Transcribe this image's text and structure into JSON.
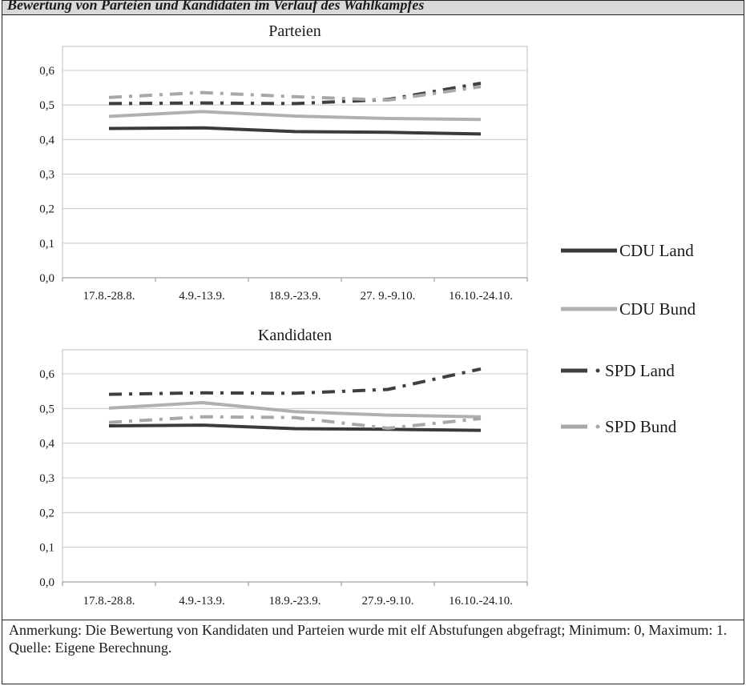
{
  "caption": "Bewertung von Parteien und Kandidaten im Verlauf des Wahlkampfes",
  "note": "Anmerkung: Die Bewertung von Kandidaten und Parteien wurde mit elf Abstufungen abgefragt; Minimum: 0, Maximum: 1.",
  "source": "Quelle: Eigene Berechnung.",
  "colors": {
    "CDU Land": "#3a3a3a",
    "CDU Bund": "#b0b0b0",
    "SPD Land": "#3f3f3f",
    "SPD Bund": "#a8a8a8"
  },
  "legend": [
    "CDU Land",
    "CDU Bund",
    "SPD Land",
    "SPD Bund"
  ],
  "chart_data": [
    {
      "type": "line",
      "title": "Parteien",
      "categories": [
        "17.8.-28.8.",
        "4.9.-13.9.",
        "18.9.-23.9.",
        "27. 9.-9.10.",
        "16.10.-24.10."
      ],
      "ylim": [
        0,
        0.6
      ],
      "yticks": [
        "0,0",
        "0,1",
        "0,2",
        "0,3",
        "0,4",
        "0,5",
        "0,6"
      ],
      "grid": true,
      "legend_position": "right",
      "series": [
        {
          "name": "CDU Land",
          "values": [
            0.432,
            0.434,
            0.423,
            0.421,
            0.416
          ]
        },
        {
          "name": "CDU Bund",
          "values": [
            0.467,
            0.481,
            0.468,
            0.461,
            0.458
          ]
        },
        {
          "name": "SPD Land",
          "values": [
            0.504,
            0.506,
            0.504,
            0.516,
            0.563
          ]
        },
        {
          "name": "SPD Bund",
          "values": [
            0.522,
            0.536,
            0.524,
            0.514,
            0.553
          ]
        }
      ]
    },
    {
      "type": "line",
      "title": "Kandidaten",
      "categories": [
        "17.8.-28.8.",
        "4.9.-13.9.",
        "18.9.-23.9.",
        "27.9.-9.10.",
        "16.10.-24.10."
      ],
      "ylim": [
        0,
        0.6
      ],
      "yticks": [
        "0,0",
        "0,1",
        "0,2",
        "0,3",
        "0,4",
        "0,5",
        "0,6"
      ],
      "grid": true,
      "legend_position": "right",
      "series": [
        {
          "name": "CDU Land",
          "values": [
            0.45,
            0.452,
            0.442,
            0.44,
            0.437
          ]
        },
        {
          "name": "CDU Bund",
          "values": [
            0.501,
            0.517,
            0.491,
            0.481,
            0.476
          ]
        },
        {
          "name": "SPD Land",
          "values": [
            0.541,
            0.545,
            0.544,
            0.555,
            0.614
          ]
        },
        {
          "name": "SPD Bund",
          "values": [
            0.46,
            0.476,
            0.474,
            0.443,
            0.471
          ]
        }
      ]
    }
  ]
}
